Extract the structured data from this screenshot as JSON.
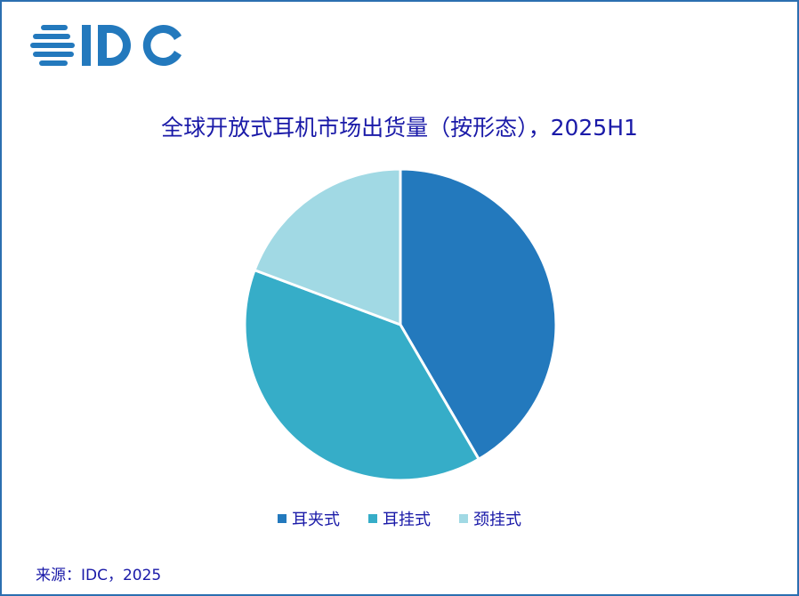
{
  "logo_text": "IDC",
  "chart_data": {
    "type": "pie",
    "title": "全球开放式耳机市场出货量（按形态），2025H1",
    "categories": [
      "耳夹式",
      "耳挂式",
      "颈挂式"
    ],
    "values": [
      41.6,
      39.1,
      19.3
    ],
    "colors": [
      "#2379bd",
      "#36adc8",
      "#a1d9e4"
    ],
    "legend_position": "bottom"
  },
  "source": "来源：IDC，2025"
}
